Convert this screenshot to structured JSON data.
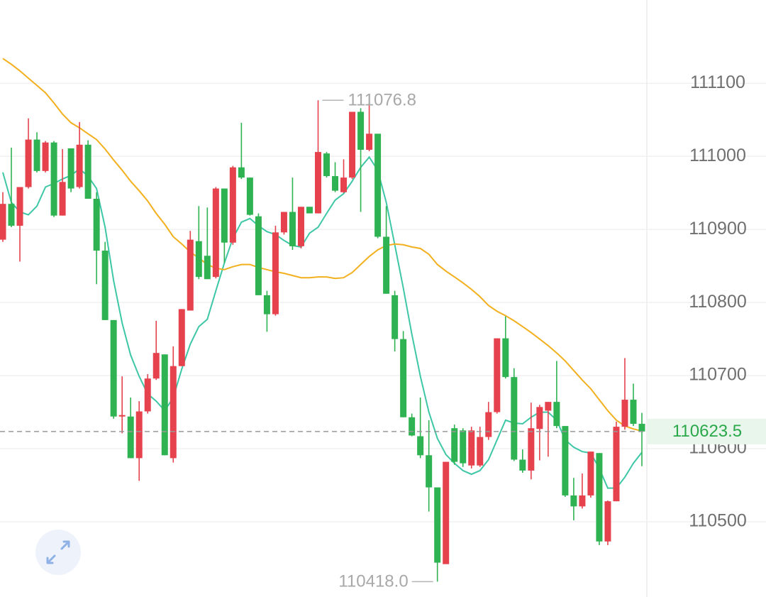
{
  "chart_data": {
    "type": "candlestick",
    "open": [
      110886,
      110935,
      110905,
      110958,
      111023,
      110980,
      111019,
      110919,
      111011,
      110958,
      111016,
      110942,
      110871,
      110776,
      110644,
      110644,
      110587,
      110651,
      110696,
      110729,
      110587,
      110713,
      110789,
      110884,
      110864,
      110835,
      110956,
      110882,
      110985,
      110971,
      110918,
      110810,
      110784,
      110896,
      110924,
      110877,
      110931,
      110922,
      111004,
      110973,
      110951,
      110971,
      111061,
      111009,
      111031,
      110890,
      110810,
      110750,
      110643,
      110617,
      110591,
      110547,
      110442,
      110628,
      110625,
      110577,
      110577,
      110616,
      110650,
      110751,
      110698,
      110585,
      110570,
      110627,
      110652,
      110664,
      110631,
      110536,
      110521,
      110536,
      110594,
      110473,
      110528,
      110630,
      110667,
      110634
    ],
    "high": [
      110951,
      111012,
      110958,
      111052,
      111033,
      111021,
      111021,
      111010,
      111011,
      111047,
      111022,
      110951,
      110883,
      110776,
      110699,
      110670,
      110665,
      110702,
      110775,
      110729,
      110740,
      110791,
      110898,
      110932,
      110930,
      110958,
      110956,
      110987,
      111046,
      110971,
      110922,
      110816,
      110905,
      110924,
      110971,
      110931,
      110931,
      111076.8,
      111006,
      110992,
      110996,
      111061,
      111066,
      111073,
      111031,
      110932,
      110816,
      110761,
      110648,
      110670,
      110639,
      110547,
      110582,
      110633,
      110628,
      110630,
      110630,
      110664,
      110751,
      110781,
      110710,
      110599,
      110663,
      110660,
      110664,
      110720,
      110631,
      110560,
      110566,
      110596,
      110594,
      110529,
      110637,
      110724,
      110689,
      110649
    ],
    "low": [
      110883,
      110903,
      110856,
      110956,
      110978,
      110978,
      110917,
      110919,
      110951,
      110956,
      110942,
      110825,
      110776,
      110641,
      110621,
      110587,
      110556,
      110648,
      110694,
      110591,
      110581,
      110713,
      110789,
      110832,
      110832,
      110833,
      110854,
      110879,
      110969,
      110919,
      110810,
      110760,
      110782,
      110893,
      110872,
      110874,
      110922,
      110922,
      110971,
      110951,
      110950,
      110969,
      110924,
      111007,
      110888,
      110812,
      110733,
      110643,
      110617,
      110587,
      110514,
      110418,
      110442,
      110578,
      110575,
      110573,
      110575,
      110612,
      110648,
      110696,
      110583,
      110567,
      110558,
      110584,
      110589,
      110628,
      110534,
      110502,
      110518,
      110533,
      110468,
      110468,
      110528,
      110626,
      110631,
      110576
    ],
    "close": [
      110935,
      110905,
      110958,
      111023,
      110980,
      111019,
      110919,
      110965,
      110956,
      111016,
      110942,
      110871,
      110776,
      110644,
      110646,
      110587,
      110651,
      110696,
      110731,
      110591,
      110713,
      110791,
      110886,
      110835,
      110832,
      110956,
      110882,
      110985,
      110971,
      110920,
      110810,
      110784,
      110896,
      110924,
      110877,
      110931,
      110922,
      111006,
      110973,
      110953,
      110971,
      111061,
      111009,
      111031,
      110890,
      110812,
      110750,
      110643,
      110618,
      110591,
      110547,
      110444,
      110582,
      110582,
      110580,
      110625,
      110616,
      110650,
      110751,
      110698,
      110585,
      110570,
      110628,
      110657,
      110664,
      110631,
      110536,
      110521,
      110536,
      110596,
      110473,
      110528,
      110630,
      110667,
      110634,
      110623.5
    ],
    "up_color": "#e5424d",
    "down_color": "#2fb352",
    "ma_lines": [
      {
        "color": "#3ec7a6",
        "values": [
          110978,
          110937,
          110924,
          110920,
          110932,
          110958,
          110963,
          110969,
          110974,
          110983,
          110973,
          110956,
          110903,
          110830,
          110772,
          110728,
          110699,
          110675,
          110665,
          110652,
          110670,
          110709,
          110743,
          110767,
          110777,
          110816,
          110854,
          110888,
          110910,
          110915,
          110905,
          110897,
          110893,
          110885,
          110878,
          110876,
          110895,
          110903,
          110922,
          110940,
          110949,
          110966,
          110985,
          110999,
          110981,
          110937,
          110879,
          110820,
          110757,
          110699,
          110650,
          110614,
          110592,
          110580,
          110570,
          110565,
          110570,
          110585,
          110612,
          110639,
          110635,
          110634,
          110643,
          110650,
          110650,
          110639,
          110612,
          110602,
          110596,
          110594,
          110573,
          110546,
          110546,
          110561,
          110580,
          110595
        ]
      },
      {
        "color": "#f2b01e",
        "values": [
          111134,
          111126,
          111117,
          111107,
          111097,
          111087,
          111073,
          111058,
          111046,
          111039,
          111031,
          111023,
          111010,
          110995,
          110981,
          110966,
          110953,
          110939,
          110922,
          110907,
          110890,
          110880,
          110869,
          110861,
          110852,
          110847,
          110845,
          110849,
          110852,
          110852,
          110848,
          110845,
          110842,
          110840,
          110837,
          110834,
          110834,
          110835,
          110835,
          110833,
          110834,
          110841,
          110852,
          110863,
          110872,
          110878,
          110880,
          110879,
          110876,
          110874,
          110866,
          110852,
          110843,
          110835,
          110827,
          110818,
          110808,
          110796,
          110788,
          110782,
          110775,
          110767,
          110759,
          110750,
          110741,
          110731,
          110720,
          110707,
          110694,
          110682,
          110667,
          110652,
          110639,
          110631,
          110627,
          110624
        ]
      }
    ],
    "ylim": [
      110397,
      111214
    ],
    "yticks": [
      110500,
      110600,
      110700,
      110800,
      110900,
      111000,
      111100
    ],
    "grid": true,
    "last_price": 110623.5,
    "annotations": [
      111076.8,
      {
        "value": 110418,
        "label": "110418.0"
      }
    ]
  }
}
